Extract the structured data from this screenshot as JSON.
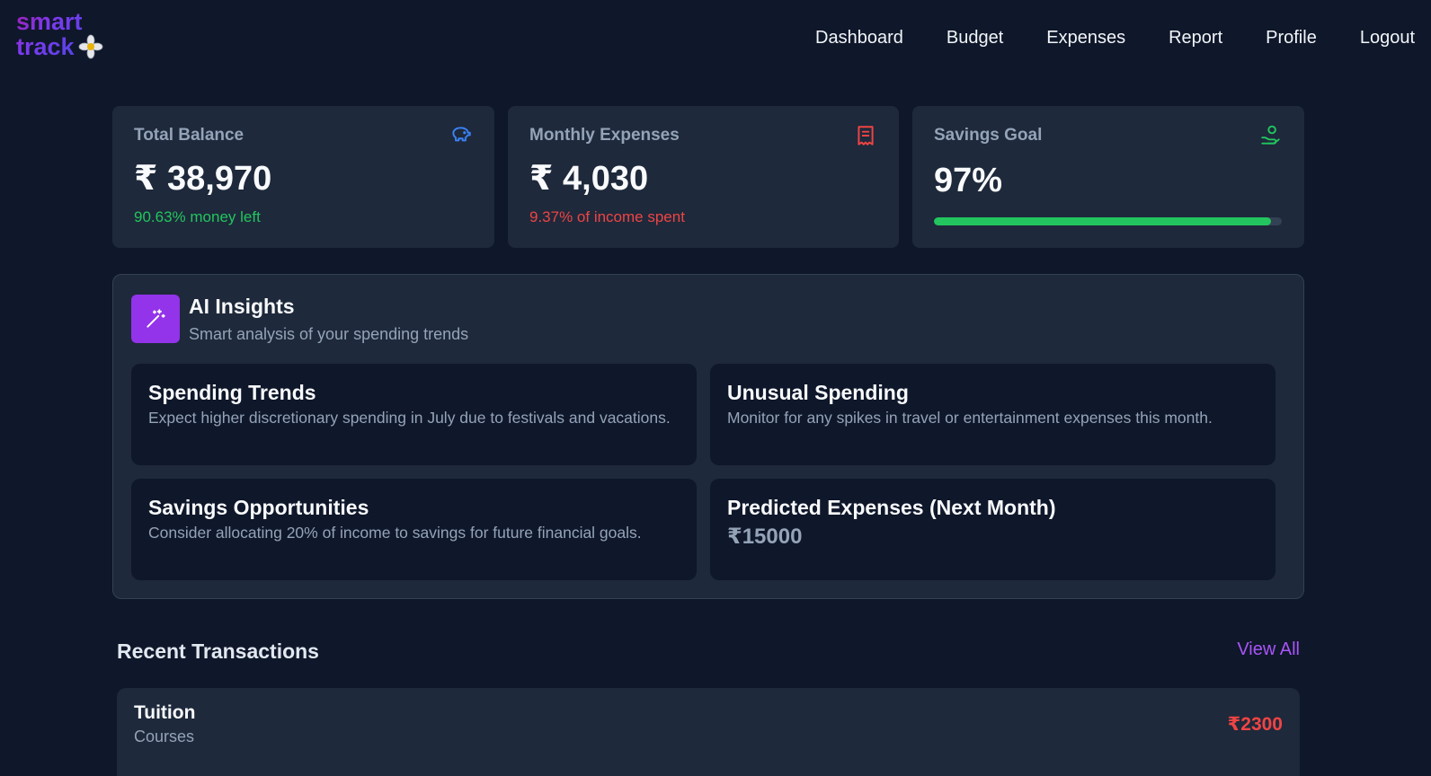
{
  "brand": {
    "line1": "smart",
    "line2": "track"
  },
  "nav": [
    "Dashboard",
    "Budget",
    "Expenses",
    "Report",
    "Profile",
    "Logout"
  ],
  "stats": {
    "balance": {
      "label": "Total Balance",
      "value": "₹ 38,970",
      "sub": "90.63% money left",
      "sub_color": "#22c55e",
      "icon": "piggy-bank-icon"
    },
    "expenses": {
      "label": "Monthly Expenses",
      "value": "₹ 4,030",
      "sub": "9.37% of income spent",
      "sub_color": "#ef4444",
      "icon": "receipt-icon"
    },
    "savings": {
      "label": "Savings Goal",
      "value": "97%",
      "progress_percent": 97,
      "icon": "hand-coins-icon"
    }
  },
  "insights": {
    "title": "AI Insights",
    "subtitle": "Smart analysis of your spending trends",
    "cards": [
      {
        "title": "Spending Trends",
        "text": "Expect higher discretionary spending in July due to festivals and vacations."
      },
      {
        "title": "Unusual Spending",
        "text": "Monitor for any spikes in travel or entertainment expenses this month."
      },
      {
        "title": "Savings Opportunities",
        "text": "Consider allocating 20% of income to savings for future financial goals."
      },
      {
        "title": "Predicted Expenses (Next Month)",
        "value": "₹15000"
      }
    ]
  },
  "recent": {
    "title": "Recent Transactions",
    "view_all": "View All",
    "items": [
      {
        "name": "Tuition",
        "category": "Courses",
        "amount": "₹2300"
      }
    ]
  },
  "colors": {
    "background": "#0f172a",
    "card": "#1e293b",
    "accent": "#9333ea",
    "positive": "#22c55e",
    "negative": "#ef4444"
  }
}
